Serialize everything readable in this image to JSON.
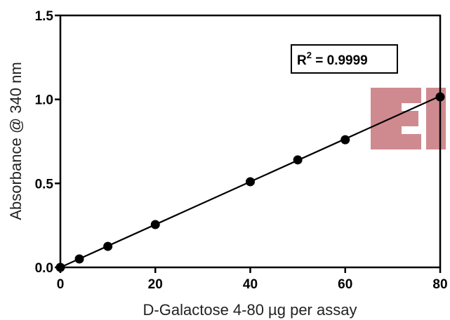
{
  "chart_data": {
    "type": "scatter",
    "title": "",
    "xlabel": "D-Galactose 4-80 µg per assay",
    "ylabel": "Absorbance @ 340 nm",
    "xlim": [
      0,
      80
    ],
    "ylim": [
      0,
      1.5
    ],
    "x_ticks": [
      "0",
      "20",
      "40",
      "60",
      "80"
    ],
    "y_ticks": [
      "0.0",
      "0.5",
      "1.0",
      "1.5"
    ],
    "series": [
      {
        "x": [
          0,
          4,
          10,
          20,
          40,
          50,
          60,
          80
        ],
        "y": [
          0.0,
          0.05,
          0.125,
          0.255,
          0.51,
          0.64,
          0.76,
          1.015
        ]
      }
    ],
    "fit_line": {
      "x": [
        0,
        80
      ],
      "y": [
        0.0,
        1.02
      ]
    },
    "annotation": {
      "r2_prefix": "R",
      "r2_sup": "2",
      "r2_value": " = 0.9999"
    },
    "grid": false,
    "marker_color": "#000000",
    "watermark_color": "#c0636b"
  }
}
